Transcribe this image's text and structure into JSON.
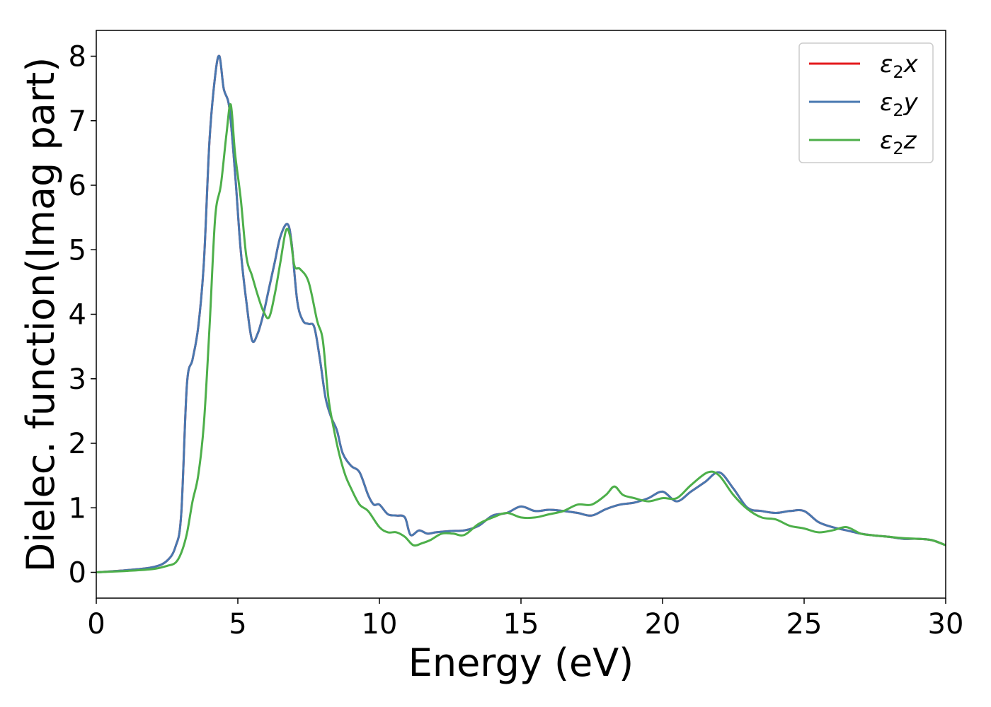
{
  "chart_data": {
    "type": "line",
    "title": "",
    "xlabel": "Energy (eV)",
    "ylabel": "Dielec. function(Imag part)",
    "xlim": [
      0,
      30
    ],
    "ylim": [
      -0.4,
      8.4
    ],
    "xticks": [
      "0",
      "5",
      "10",
      "15",
      "20",
      "25",
      "30"
    ],
    "yticks": [
      "0",
      "1",
      "2",
      "3",
      "4",
      "5",
      "6",
      "7",
      "8"
    ],
    "grid": false,
    "legend_placement": "top-right",
    "series": [
      {
        "name": "ε2x",
        "legend_main": "ε",
        "legend_sub": "2",
        "legend_suffix": "x",
        "color": "#e41a1c",
        "x": [
          0,
          1,
          2,
          2.5,
          2.8,
          3,
          3.2,
          3.4,
          3.6,
          3.8,
          4,
          4.2,
          4.35,
          4.5,
          4.7,
          4.9,
          5.1,
          5.3,
          5.5,
          5.7,
          5.9,
          6.1,
          6.3,
          6.5,
          6.75,
          6.9,
          7.1,
          7.3,
          7.5,
          7.7,
          7.9,
          8.1,
          8.3,
          8.5,
          8.7,
          9,
          9.3,
          9.6,
          9.8,
          10,
          10.3,
          10.6,
          10.9,
          11.1,
          11.4,
          11.7,
          12,
          12.5,
          13,
          13.5,
          14,
          14.5,
          15,
          15.5,
          16,
          16.5,
          17,
          17.5,
          18,
          18.5,
          19,
          19.5,
          20,
          20.5,
          21,
          21.5,
          22,
          22.5,
          23,
          23.5,
          24,
          24.5,
          25,
          25.5,
          26,
          26.5,
          27,
          27.5,
          28,
          28.5,
          29,
          29.5,
          30
        ],
        "y": [
          0,
          0.03,
          0.08,
          0.18,
          0.4,
          0.9,
          2.9,
          3.3,
          3.8,
          4.8,
          6.7,
          7.7,
          8.0,
          7.5,
          7.2,
          6.2,
          5.0,
          4.2,
          3.6,
          3.7,
          4.0,
          4.4,
          4.8,
          5.2,
          5.4,
          5.1,
          4.2,
          3.9,
          3.85,
          3.8,
          3.3,
          2.7,
          2.4,
          2.2,
          1.85,
          1.65,
          1.55,
          1.2,
          1.05,
          1.05,
          0.9,
          0.88,
          0.85,
          0.58,
          0.65,
          0.6,
          0.62,
          0.64,
          0.65,
          0.72,
          0.88,
          0.92,
          1.02,
          0.95,
          0.97,
          0.95,
          0.92,
          0.88,
          0.98,
          1.05,
          1.08,
          1.15,
          1.25,
          1.1,
          1.25,
          1.4,
          1.55,
          1.3,
          1.0,
          0.95,
          0.92,
          0.95,
          0.95,
          0.78,
          0.7,
          0.65,
          0.6,
          0.57,
          0.55,
          0.52,
          0.52,
          0.5,
          0.42
        ]
      },
      {
        "name": "ε2y",
        "legend_main": "ε",
        "legend_sub": "2",
        "legend_suffix": "y",
        "color": "#4878b0",
        "x": [
          0,
          1,
          2,
          2.5,
          2.8,
          3,
          3.2,
          3.4,
          3.6,
          3.8,
          4,
          4.2,
          4.35,
          4.5,
          4.7,
          4.9,
          5.1,
          5.3,
          5.5,
          5.7,
          5.9,
          6.1,
          6.3,
          6.5,
          6.75,
          6.9,
          7.1,
          7.3,
          7.5,
          7.7,
          7.9,
          8.1,
          8.3,
          8.5,
          8.7,
          9,
          9.3,
          9.6,
          9.8,
          10,
          10.3,
          10.6,
          10.9,
          11.1,
          11.4,
          11.7,
          12,
          12.5,
          13,
          13.5,
          14,
          14.5,
          15,
          15.5,
          16,
          16.5,
          17,
          17.5,
          18,
          18.5,
          19,
          19.5,
          20,
          20.5,
          21,
          21.5,
          22,
          22.5,
          23,
          23.5,
          24,
          24.5,
          25,
          25.5,
          26,
          26.5,
          27,
          27.5,
          28,
          28.5,
          29,
          29.5,
          30
        ],
        "y": [
          0,
          0.03,
          0.08,
          0.18,
          0.4,
          0.9,
          2.9,
          3.3,
          3.8,
          4.8,
          6.7,
          7.7,
          8.0,
          7.5,
          7.2,
          6.2,
          5.0,
          4.2,
          3.6,
          3.7,
          4.0,
          4.4,
          4.8,
          5.2,
          5.4,
          5.1,
          4.2,
          3.9,
          3.85,
          3.8,
          3.3,
          2.7,
          2.4,
          2.2,
          1.85,
          1.65,
          1.55,
          1.2,
          1.05,
          1.05,
          0.9,
          0.88,
          0.85,
          0.58,
          0.65,
          0.6,
          0.62,
          0.64,
          0.65,
          0.72,
          0.88,
          0.92,
          1.02,
          0.95,
          0.97,
          0.95,
          0.92,
          0.88,
          0.98,
          1.05,
          1.08,
          1.15,
          1.25,
          1.1,
          1.25,
          1.4,
          1.55,
          1.3,
          1.0,
          0.95,
          0.92,
          0.95,
          0.95,
          0.78,
          0.7,
          0.65,
          0.6,
          0.57,
          0.55,
          0.52,
          0.52,
          0.5,
          0.42
        ]
      },
      {
        "name": "ε2z",
        "legend_main": "ε",
        "legend_sub": "2",
        "legend_suffix": "z",
        "color": "#4daf4a",
        "x": [
          0,
          1,
          2,
          2.5,
          2.8,
          3,
          3.2,
          3.4,
          3.6,
          3.8,
          4,
          4.2,
          4.4,
          4.6,
          4.75,
          4.9,
          5.1,
          5.3,
          5.5,
          5.7,
          5.9,
          6.1,
          6.3,
          6.5,
          6.7,
          6.85,
          7.0,
          7.2,
          7.5,
          7.8,
          8.0,
          8.2,
          8.4,
          8.6,
          8.8,
          9.0,
          9.3,
          9.6,
          10.0,
          10.3,
          10.6,
          10.9,
          11.2,
          11.5,
          11.8,
          12.2,
          12.6,
          13.0,
          13.5,
          14.0,
          14.5,
          15.0,
          15.5,
          16.0,
          16.5,
          17.0,
          17.5,
          18.0,
          18.3,
          18.6,
          19.0,
          19.5,
          20.0,
          20.5,
          21.0,
          21.6,
          22.0,
          22.5,
          23.0,
          23.5,
          24.0,
          24.5,
          25.0,
          25.5,
          26.0,
          26.5,
          27.0,
          27.5,
          28.0,
          28.5,
          29.0,
          29.5,
          30.0
        ],
        "y": [
          0,
          0.02,
          0.05,
          0.1,
          0.15,
          0.3,
          0.6,
          1.1,
          1.5,
          2.3,
          3.8,
          5.5,
          6.0,
          6.8,
          7.25,
          6.5,
          5.8,
          4.9,
          4.6,
          4.3,
          4.05,
          3.95,
          4.3,
          4.8,
          5.3,
          5.2,
          4.75,
          4.7,
          4.5,
          3.9,
          3.6,
          2.7,
          2.2,
          1.8,
          1.5,
          1.3,
          1.05,
          0.95,
          0.7,
          0.62,
          0.62,
          0.55,
          0.42,
          0.45,
          0.5,
          0.6,
          0.6,
          0.58,
          0.75,
          0.85,
          0.92,
          0.85,
          0.85,
          0.9,
          0.95,
          1.05,
          1.05,
          1.2,
          1.33,
          1.2,
          1.15,
          1.1,
          1.15,
          1.15,
          1.35,
          1.55,
          1.5,
          1.2,
          0.98,
          0.85,
          0.82,
          0.72,
          0.68,
          0.62,
          0.65,
          0.7,
          0.6,
          0.57,
          0.55,
          0.53,
          0.52,
          0.5,
          0.42
        ]
      }
    ]
  }
}
